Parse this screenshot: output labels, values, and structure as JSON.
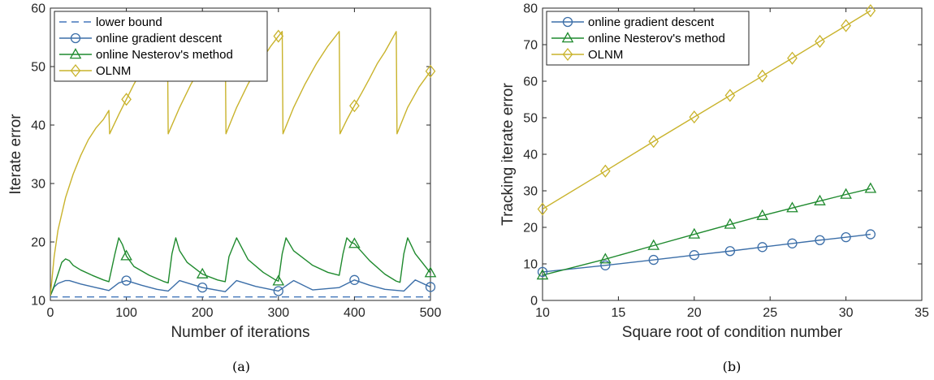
{
  "chart_data": [
    {
      "type": "line",
      "caption": "(a)",
      "xlabel": "Number of iterations",
      "ylabel": "Iterate error",
      "xlim": [
        0,
        500
      ],
      "ylim": [
        10,
        60
      ],
      "xticks": [
        0,
        100,
        200,
        300,
        400,
        500
      ],
      "yticks": [
        10,
        20,
        30,
        40,
        50,
        60
      ],
      "legend_position": "top-left",
      "series": [
        {
          "name": "lower bound",
          "color": "#4477bb",
          "style": "dashed",
          "marker": "none",
          "x": [
            0,
            500
          ],
          "y": [
            10.6,
            10.6
          ]
        },
        {
          "name": "online gradient descent",
          "color": "#3b6ea8",
          "marker": "circle",
          "x": [
            0,
            5,
            10,
            20,
            25,
            40,
            60,
            77,
            90,
            100,
            120,
            140,
            155,
            170,
            200,
            230,
            245,
            270,
            300,
            320,
            345,
            380,
            400,
            420,
            440,
            465,
            480,
            500
          ],
          "y": [
            10.8,
            12.3,
            12.9,
            13.4,
            13.4,
            12.8,
            12.2,
            11.7,
            13.0,
            13.4,
            12.6,
            11.9,
            11.6,
            13.4,
            12.2,
            11.5,
            13.4,
            12.4,
            11.6,
            13.4,
            11.8,
            12.2,
            13.5,
            12.6,
            11.9,
            11.6,
            13.5,
            12.3
          ],
          "markers_x": [
            100,
            200,
            300,
            400,
            500
          ],
          "markers_y": [
            13.4,
            12.2,
            11.6,
            13.5,
            12.3
          ]
        },
        {
          "name": "online Nesterov's method",
          "color": "#1f8a2e",
          "marker": "triangle",
          "x": [
            0,
            5,
            10,
            15,
            20,
            25,
            30,
            40,
            55,
            70,
            77,
            85,
            90,
            95,
            100,
            110,
            130,
            150,
            155,
            160,
            165,
            170,
            180,
            200,
            220,
            230,
            235,
            245,
            260,
            280,
            295,
            300,
            305,
            310,
            320,
            345,
            365,
            380,
            385,
            390,
            395,
            400,
            420,
            440,
            455,
            460,
            465,
            470,
            480,
            500
          ],
          "y": [
            10.8,
            12.5,
            14.5,
            16.5,
            17.1,
            16.8,
            16.0,
            15.2,
            14.3,
            13.5,
            13.2,
            18.0,
            20.7,
            19.5,
            17.6,
            15.8,
            14.3,
            13.2,
            13.0,
            18.0,
            20.7,
            18.5,
            16.5,
            14.5,
            13.5,
            13.2,
            17.5,
            20.7,
            17.0,
            14.8,
            13.6,
            13.3,
            18.0,
            20.7,
            18.5,
            16.0,
            14.8,
            14.3,
            18.0,
            20.7,
            20.0,
            19.7,
            16.8,
            14.5,
            13.3,
            13.1,
            18.0,
            20.7,
            18.0,
            14.7
          ],
          "markers_x": [
            100,
            200,
            300,
            400,
            500
          ],
          "markers_y": [
            17.6,
            14.5,
            13.3,
            19.7,
            14.7
          ]
        },
        {
          "name": "OLNM",
          "color": "#c9b32c",
          "marker": "diamond",
          "x": [
            0,
            5,
            10,
            20,
            30,
            40,
            50,
            60,
            70,
            77,
            78,
            90,
            100,
            110,
            120,
            130,
            154,
            155,
            170,
            185,
            200,
            215,
            230,
            231,
            245,
            260,
            275,
            290,
            300,
            305,
            306,
            320,
            335,
            350,
            365,
            380,
            381,
            390,
            400,
            410,
            420,
            430,
            440,
            455,
            456,
            470,
            485,
            500
          ],
          "y": [
            10.8,
            17.5,
            22.0,
            27.6,
            31.6,
            34.8,
            37.5,
            39.5,
            41.0,
            42.5,
            38.5,
            41.8,
            44.4,
            47.0,
            49.3,
            51.5,
            55.8,
            38.5,
            43.0,
            47.0,
            50.4,
            53.5,
            56.0,
            38.5,
            43.0,
            47.0,
            50.5,
            53.5,
            55.2,
            56.0,
            38.5,
            43.0,
            47.0,
            50.5,
            53.5,
            56.0,
            38.5,
            40.9,
            43.3,
            45.6,
            48.0,
            50.5,
            52.5,
            56.0,
            38.5,
            43.0,
            46.5,
            49.2
          ],
          "markers_x": [
            100,
            300,
            400,
            500
          ],
          "markers_y": [
            44.4,
            55.2,
            43.3,
            49.2
          ]
        }
      ]
    },
    {
      "type": "line",
      "caption": "(b)",
      "xlabel": "Square root of condition number",
      "ylabel": "Tracking iterate error",
      "xlim": [
        10,
        35
      ],
      "ylim": [
        0,
        80
      ],
      "xticks": [
        10,
        15,
        20,
        25,
        30,
        35
      ],
      "yticks": [
        0,
        10,
        20,
        30,
        40,
        50,
        60,
        70,
        80
      ],
      "legend_position": "top-left",
      "series": [
        {
          "name": "online gradient descent",
          "color": "#3b6ea8",
          "marker": "circle",
          "x": [
            10,
            14.14,
            17.32,
            20,
            22.36,
            24.49,
            26.46,
            28.28,
            30,
            31.62
          ],
          "y": [
            7.8,
            9.6,
            11.1,
            12.4,
            13.5,
            14.6,
            15.6,
            16.5,
            17.3,
            18.1
          ]
        },
        {
          "name": "online Nesterov's method",
          "color": "#1f8a2e",
          "marker": "triangle",
          "x": [
            10,
            14.14,
            17.32,
            20,
            22.36,
            24.49,
            26.46,
            28.28,
            30,
            31.62
          ],
          "y": [
            6.9,
            11.3,
            15.0,
            18.1,
            20.8,
            23.2,
            25.3,
            27.2,
            29.0,
            30.6
          ]
        },
        {
          "name": "OLNM",
          "color": "#c9b32c",
          "marker": "diamond",
          "x": [
            10,
            14.14,
            17.32,
            20,
            22.36,
            24.49,
            26.46,
            28.28,
            30,
            31.62
          ],
          "y": [
            25.0,
            35.4,
            43.5,
            50.2,
            56.1,
            61.4,
            66.3,
            70.9,
            75.2,
            79.3
          ]
        }
      ]
    }
  ]
}
